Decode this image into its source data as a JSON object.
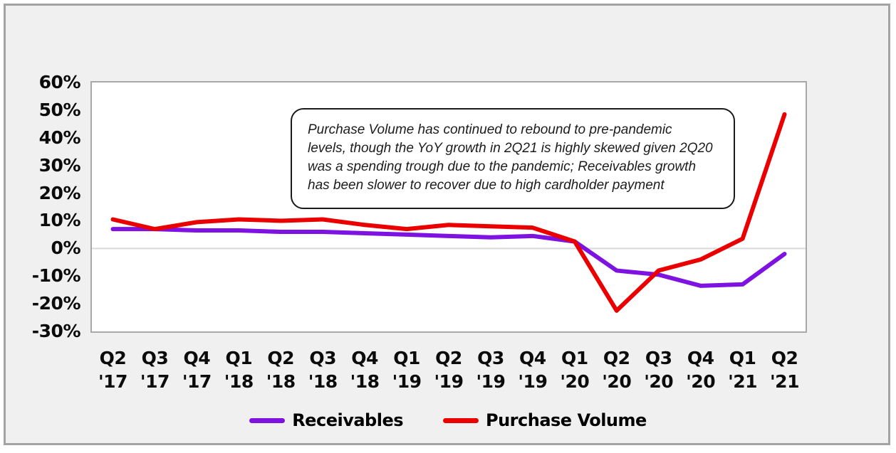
{
  "colors": {
    "background": "#f0f0f0",
    "frame_border": "#a3a3a3",
    "plot_background": "#ffffff",
    "plot_border": "#a8a8a8",
    "zero_gridline": "#d9d9d9",
    "axis_text": "#0b0b0b",
    "receivables_line": "#7E12E0",
    "purchase_volume_line": "#EB0000"
  },
  "chart_data": {
    "type": "line",
    "title": "",
    "xlabel": "",
    "ylabel": "",
    "ylim": [
      -30,
      60
    ],
    "yticks": [
      60,
      50,
      40,
      30,
      20,
      10,
      0,
      -10,
      -20,
      -30
    ],
    "ytick_format": "percent",
    "grid": "horizontal line at 0% only",
    "legend_position": "bottom-center",
    "categories": [
      {
        "quarter": "Q2",
        "year": "'17"
      },
      {
        "quarter": "Q3",
        "year": "'17"
      },
      {
        "quarter": "Q4",
        "year": "'17"
      },
      {
        "quarter": "Q1",
        "year": "'18"
      },
      {
        "quarter": "Q2",
        "year": "'18"
      },
      {
        "quarter": "Q3",
        "year": "'18"
      },
      {
        "quarter": "Q4",
        "year": "'18"
      },
      {
        "quarter": "Q1",
        "year": "'19"
      },
      {
        "quarter": "Q2",
        "year": "'19"
      },
      {
        "quarter": "Q3",
        "year": "'19"
      },
      {
        "quarter": "Q4",
        "year": "'19"
      },
      {
        "quarter": "Q1",
        "year": "'20"
      },
      {
        "quarter": "Q2",
        "year": "'20"
      },
      {
        "quarter": "Q3",
        "year": "'20"
      },
      {
        "quarter": "Q4",
        "year": "'20"
      },
      {
        "quarter": "Q1",
        "year": "'21"
      },
      {
        "quarter": "Q2",
        "year": "'21"
      }
    ],
    "series": [
      {
        "name": "Receivables",
        "color": "#7E12E0",
        "values": [
          7,
          7,
          6.5,
          6.5,
          6,
          6,
          5.5,
          5,
          4.5,
          4,
          4.5,
          2.5,
          -8,
          -9.5,
          -13.5,
          -13,
          -2
        ]
      },
      {
        "name": "Purchase Volume",
        "color": "#EB0000",
        "values": [
          10.5,
          7,
          9.5,
          10.5,
          10,
          10.5,
          8.5,
          7,
          8.5,
          8,
          7.5,
          2.5,
          -22.5,
          -8,
          -4,
          3.5,
          48.5
        ]
      }
    ]
  },
  "annotation": {
    "lines": [
      "Purchase Volume has continued to rebound to pre-pandemic",
      "levels, though the YoY growth in 2Q21 is highly skewed given 2Q20",
      "was a spending trough due to the pandemic; Receivables growth",
      "has been slower to recover due to high cardholder payment"
    ]
  }
}
